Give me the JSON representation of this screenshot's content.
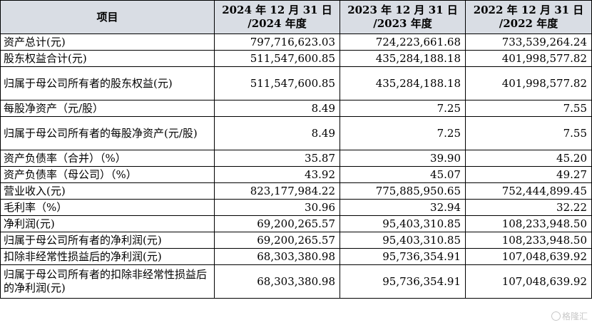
{
  "header": {
    "item": "项目",
    "col2024": "2024 年 12 月 31 日\n/2024 年度",
    "col2023": "2023 年 12 月 31 日\n/2023 年度",
    "col2022": "2022 年 12 月 31 日\n/2022 年度"
  },
  "rows": [
    {
      "label": "资产总计(元)",
      "v2024": "797,716,623.03",
      "v2023": "724,223,661.68",
      "v2022": "733,539,264.24"
    },
    {
      "label": "股东权益合计(元)",
      "v2024": "511,547,600.85",
      "v2023": "435,284,188.18",
      "v2022": "401,998,577.82"
    },
    {
      "label": "归属于母公司所有者的股东权益(元)",
      "v2024": "511,547,600.85",
      "v2023": "435,284,188.18",
      "v2022": "401,998,577.82"
    },
    {
      "label": "每股净资产（元/股）",
      "v2024": "8.49",
      "v2023": "7.25",
      "v2022": "7.55"
    },
    {
      "label": "归属于母公司所有者的每股净资产(元/股)",
      "v2024": "8.49",
      "v2023": "7.25",
      "v2022": "7.55"
    },
    {
      "label": "资产负债率（合并）（%）",
      "v2024": "35.87",
      "v2023": "39.90",
      "v2022": "45.20"
    },
    {
      "label": "资产负债率（母公司）（%）",
      "v2024": "43.92",
      "v2023": "45.07",
      "v2022": "49.27"
    },
    {
      "label": "营业收入(元)",
      "v2024": "823,177,984.22",
      "v2023": "775,885,950.65",
      "v2022": "752,444,899.45"
    },
    {
      "label": "毛利率（%）",
      "v2024": "30.96",
      "v2023": "32.94",
      "v2022": "32.22"
    },
    {
      "label": "净利润(元)",
      "v2024": "69,200,265.57",
      "v2023": "95,403,310.85",
      "v2022": "108,233,948.50"
    },
    {
      "label": "归属于母公司所有者的净利润(元)",
      "v2024": "69,200,265.57",
      "v2023": "95,403,310.85",
      "v2022": "108,233,948.50"
    },
    {
      "label": "扣除非经常性损益后的净利润(元)",
      "v2024": "68,303,380.98",
      "v2023": "95,736,354.91",
      "v2022": "107,048,639.92"
    },
    {
      "label": "归属于母公司所有者的扣除非经常性损益后的净利润(元)",
      "v2024": "68,303,380.98",
      "v2023": "95,736,354.91",
      "v2022": "107,048,639.92"
    }
  ],
  "watermark": "格隆汇"
}
